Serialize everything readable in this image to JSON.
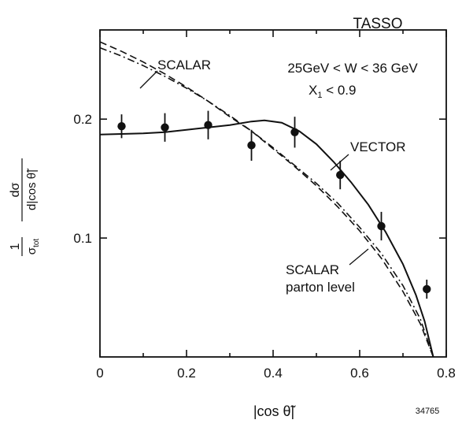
{
  "chart_data": {
    "type": "line",
    "experiment_label": "TASSO",
    "conditions": [
      "25GeV < W < 36 GeV",
      "X1 < 0.9"
    ],
    "xlabel": "|cos θ̃|",
    "ylabel": {
      "prefix": "1",
      "prefix_denominator": "σtot",
      "numerator": "dσ",
      "denominator": "d|cos θ̃|"
    },
    "xlim": [
      0,
      0.8
    ],
    "ylim": [
      0,
      0.275
    ],
    "x_ticks": [
      0,
      0.2,
      0.4,
      0.6,
      0.8
    ],
    "x_tick_labels": [
      "0",
      "0.2",
      "0.4",
      "0.6",
      "0.8"
    ],
    "y_ticks": [
      0.1,
      0.2
    ],
    "y_tick_labels": [
      "0.1",
      "0.2"
    ],
    "figure_number": "34765",
    "colors": {
      "ink": "#111111",
      "background": "#ffffff"
    },
    "series": [
      {
        "label_lines": [
          "VECTOR"
        ],
        "style": "solid",
        "x": [
          0,
          0.05,
          0.1,
          0.15,
          0.2,
          0.25,
          0.3,
          0.35,
          0.38,
          0.42,
          0.46,
          0.5,
          0.54,
          0.58,
          0.62,
          0.66,
          0.7,
          0.73,
          0.75,
          0.77
        ],
        "y": [
          0.187,
          0.1875,
          0.188,
          0.189,
          0.191,
          0.193,
          0.195,
          0.198,
          0.199,
          0.197,
          0.19,
          0.179,
          0.164,
          0.147,
          0.128,
          0.105,
          0.078,
          0.052,
          0.03,
          0.0
        ]
      },
      {
        "label_lines": [
          "SCALAR"
        ],
        "style": "dashed",
        "x": [
          0,
          0.05,
          0.1,
          0.15,
          0.2,
          0.25,
          0.3,
          0.35,
          0.4,
          0.45,
          0.5,
          0.55,
          0.6,
          0.65,
          0.7,
          0.74,
          0.77
        ],
        "y": [
          0.265,
          0.257,
          0.248,
          0.238,
          0.227,
          0.215,
          0.202,
          0.19,
          0.175,
          0.16,
          0.144,
          0.126,
          0.106,
          0.083,
          0.055,
          0.028,
          0.0
        ]
      },
      {
        "label_lines": [
          "SCALAR",
          "parton level"
        ],
        "style": "dashdot",
        "x": [
          0,
          0.05,
          0.1,
          0.15,
          0.2,
          0.25,
          0.3,
          0.35,
          0.4,
          0.45,
          0.5,
          0.55,
          0.6,
          0.65,
          0.7,
          0.74,
          0.77
        ],
        "y": [
          0.26,
          0.253,
          0.245,
          0.236,
          0.226,
          0.215,
          0.203,
          0.19,
          0.176,
          0.161,
          0.146,
          0.129,
          0.109,
          0.087,
          0.06,
          0.032,
          0.0
        ]
      }
    ],
    "data_points": {
      "x": [
        0.05,
        0.15,
        0.25,
        0.35,
        0.45,
        0.555,
        0.65,
        0.755
      ],
      "y": [
        0.194,
        0.193,
        0.195,
        0.178,
        0.189,
        0.153,
        0.11,
        0.057
      ],
      "err": [
        0.01,
        0.012,
        0.012,
        0.013,
        0.013,
        0.012,
        0.012,
        0.008
      ]
    }
  }
}
